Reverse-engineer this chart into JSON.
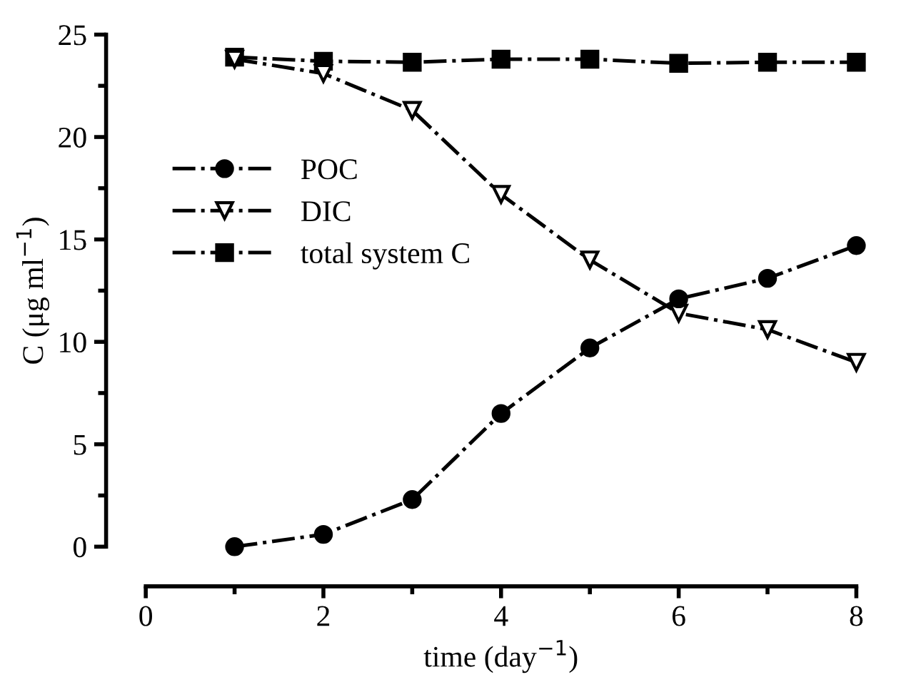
{
  "chart_data": {
    "type": "line",
    "xlabel": "time (day$^{−1}$)",
    "ylabel": "C (μg ml$^{−1}$)",
    "x": [
      1,
      2,
      3,
      4,
      5,
      6,
      7,
      8
    ],
    "series": [
      {
        "name": "POC",
        "color": "#000000",
        "marker": "circle",
        "values": [
          0,
          0.6,
          2.3,
          6.5,
          9.7,
          12.1,
          13.1,
          14.7
        ]
      },
      {
        "name": "DIC",
        "color": "#000000",
        "marker": "triangle",
        "values": [
          23.8,
          23.1,
          21.3,
          17.2,
          14.0,
          11.4,
          10.6,
          9.0
        ]
      },
      {
        "name": "total system C",
        "color": "#000000",
        "marker": "square",
        "values": [
          23.9,
          23.7,
          23.65,
          23.8,
          23.8,
          23.6,
          23.65,
          23.65
        ]
      }
    ],
    "line_style": "dashdot",
    "xlim": [
      0,
      8
    ],
    "ylim": [
      0,
      25
    ],
    "xticks": [
      0,
      2,
      4,
      6,
      8
    ],
    "yticks": [
      0,
      5,
      10,
      15,
      20,
      25
    ],
    "grid": false,
    "legend": "center left"
  }
}
